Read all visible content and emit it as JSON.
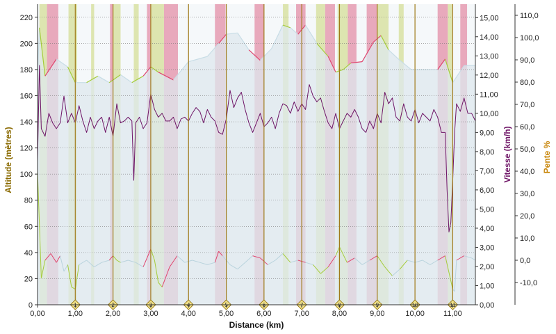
{
  "chart_data": {
    "type": "line",
    "xlabel": "Distance (km)",
    "x_ticks": [
      "0,00",
      "1,00",
      "2,00",
      "3,00",
      "4,00",
      "5,00",
      "6,00",
      "7,00",
      "8,00",
      "9,00",
      "10,00",
      "11,00"
    ],
    "xlim": [
      0,
      11.6
    ],
    "y_left": {
      "label": "Altitude (mètres)",
      "ticks": [
        "0",
        "20",
        "40",
        "60",
        "80",
        "100",
        "120",
        "140",
        "160",
        "180",
        "200",
        "220"
      ],
      "lim": [
        0,
        230
      ]
    },
    "y_right_speed": {
      "label": "Vitesse (km/h)",
      "ticks": [
        "0,00",
        "1,00",
        "2,00",
        "3,00",
        "4,00",
        "5,00",
        "6,00",
        "7,00",
        "8,00",
        "9,00",
        "10,00",
        "11,00",
        "12,00",
        "13,00",
        "14,00",
        "15,00"
      ],
      "lim": [
        0,
        15.7
      ]
    },
    "y_right_slope": {
      "label": "Pente %",
      "ticks": [
        "-10,0",
        "0,0",
        "10,0",
        "20,0",
        "30,0",
        "40,0",
        "50,0",
        "60,0",
        "70,0",
        "80,0",
        "90,0",
        "100,0",
        "110,0"
      ],
      "lim": [
        -20,
        115
      ]
    },
    "km_markers": [
      "1",
      "2",
      "3",
      "4",
      "5",
      "6",
      "7",
      "8",
      "9",
      "10",
      "11"
    ],
    "colors": {
      "altitude_fill": "#dde8ee",
      "altitude_line": "#c8dde6",
      "uphill": "#e8a9bc",
      "downhill": "#dde5b0",
      "uphill_line": "#e0456e",
      "downhill_line": "#a5cc3a",
      "speed": "#6e1466",
      "km_line": "#a07a1a",
      "axis_text_left": "#8a6a00",
      "axis_text_speed": "#6e1466",
      "axis_text_slope": "#c8860a"
    },
    "grid": true,
    "series": [
      {
        "name": "Altitude (mètres)",
        "axis": "left",
        "x": [
          0.0,
          0.05,
          0.2,
          0.5,
          0.8,
          1.0,
          1.3,
          1.6,
          1.9,
          2.2,
          2.5,
          2.8,
          3.0,
          3.2,
          3.6,
          4.0,
          4.5,
          4.8,
          5.0,
          5.3,
          5.6,
          5.9,
          6.2,
          6.5,
          6.7,
          6.9,
          7.1,
          7.4,
          7.7,
          7.9,
          8.1,
          8.3,
          8.6,
          8.9,
          9.1,
          9.3,
          9.6,
          9.9,
          10.3,
          10.6,
          10.8,
          11.0,
          11.3,
          11.6
        ],
        "values": [
          175,
          212,
          175,
          188,
          182,
          170,
          170,
          175,
          170,
          176,
          170,
          175,
          182,
          178,
          172,
          186,
          190,
          200,
          207,
          208,
          195,
          187,
          196,
          214,
          212,
          207,
          214,
          200,
          190,
          178,
          180,
          185,
          186,
          201,
          206,
          195,
          187,
          180,
          180,
          180,
          188,
          170,
          183,
          183
        ]
      },
      {
        "name": "Vitesse (km/h)",
        "axis": "right_speed",
        "x": [
          0.0,
          0.05,
          0.1,
          0.2,
          0.3,
          0.4,
          0.5,
          0.6,
          0.7,
          0.8,
          0.9,
          1.0,
          1.1,
          1.2,
          1.3,
          1.4,
          1.5,
          1.6,
          1.7,
          1.8,
          1.9,
          2.0,
          2.1,
          2.2,
          2.3,
          2.4,
          2.5,
          2.55,
          2.6,
          2.7,
          2.8,
          2.9,
          3.0,
          3.1,
          3.2,
          3.3,
          3.4,
          3.5,
          3.6,
          3.7,
          3.8,
          3.9,
          4.0,
          4.1,
          4.2,
          4.3,
          4.4,
          4.5,
          4.6,
          4.7,
          4.8,
          4.9,
          5.0,
          5.1,
          5.2,
          5.3,
          5.4,
          5.5,
          5.6,
          5.7,
          5.8,
          5.9,
          6.0,
          6.1,
          6.2,
          6.3,
          6.4,
          6.5,
          6.6,
          6.7,
          6.8,
          6.9,
          7.0,
          7.1,
          7.2,
          7.3,
          7.4,
          7.5,
          7.6,
          7.7,
          7.8,
          7.9,
          8.0,
          8.1,
          8.2,
          8.3,
          8.4,
          8.5,
          8.6,
          8.7,
          8.8,
          8.9,
          9.0,
          9.1,
          9.2,
          9.3,
          9.4,
          9.5,
          9.6,
          9.7,
          9.8,
          9.9,
          10.0,
          10.1,
          10.2,
          10.3,
          10.4,
          10.5,
          10.6,
          10.7,
          10.8,
          10.85,
          10.9,
          10.95,
          11.0,
          11.05,
          11.1,
          11.2,
          11.3,
          11.4,
          11.5,
          11.6
        ],
        "values": [
          7.5,
          12.5,
          9.2,
          8.8,
          10.0,
          9.5,
          9.2,
          9.5,
          10.9,
          9.5,
          10.0,
          9.5,
          10.4,
          9.6,
          9.0,
          9.8,
          9.2,
          9.6,
          9.8,
          9.0,
          9.8,
          8.8,
          10.5,
          9.5,
          9.6,
          9.8,
          9.6,
          6.5,
          9.5,
          9.8,
          9.2,
          9.5,
          11.0,
          10.2,
          9.8,
          10.0,
          9.6,
          9.6,
          9.8,
          9.2,
          9.7,
          9.8,
          9.6,
          10.0,
          10.3,
          10.1,
          9.5,
          10.2,
          9.8,
          9.6,
          9.0,
          8.9,
          9.7,
          11.2,
          10.3,
          10.8,
          11.1,
          10.2,
          9.5,
          9.0,
          9.5,
          10.0,
          9.3,
          9.5,
          9.8,
          9.2,
          10.0,
          10.5,
          10.4,
          10.0,
          10.6,
          10.1,
          10.5,
          10.2,
          11.5,
          10.9,
          10.6,
          10.8,
          10.1,
          9.5,
          9.2,
          10.0,
          9.2,
          9.6,
          10.0,
          9.8,
          10.2,
          9.8,
          9.2,
          9.0,
          9.6,
          9.2,
          10.0,
          9.5,
          11.1,
          10.5,
          10.8,
          9.8,
          9.6,
          10.5,
          9.8,
          9.6,
          10.2,
          9.5,
          10.0,
          9.8,
          9.6,
          10.2,
          9.8,
          9.0,
          9.0,
          6.0,
          3.8,
          4.3,
          6.5,
          9.0,
          10.5,
          10.1,
          10.8,
          10.0,
          10.0,
          9.6
        ]
      },
      {
        "name": "Pente %",
        "axis": "right_slope",
        "x": [
          0.0,
          0.1,
          0.2,
          0.35,
          0.5,
          0.6,
          0.7,
          0.8,
          0.9,
          1.0,
          1.1,
          1.3,
          1.5,
          1.7,
          1.9,
          2.0,
          2.1,
          2.2,
          2.4,
          2.6,
          2.8,
          3.0,
          3.1,
          3.2,
          3.3,
          3.5,
          3.7,
          3.9,
          4.1,
          4.3,
          4.5,
          4.7,
          4.8,
          4.9,
          5.1,
          5.3,
          5.5,
          5.7,
          5.9,
          6.1,
          6.3,
          6.5,
          6.7,
          6.9,
          7.1,
          7.3,
          7.5,
          7.7,
          7.9,
          8.0,
          8.2,
          8.4,
          8.6,
          8.8,
          9.0,
          9.2,
          9.4,
          9.6,
          9.8,
          10.0,
          10.2,
          10.4,
          10.6,
          10.8,
          11.0,
          11.05,
          11.1,
          11.3,
          11.5,
          11.6
        ],
        "values": [
          40,
          -8,
          0,
          3,
          -1,
          2,
          -5,
          -2,
          -12,
          -13,
          -2,
          0,
          -3,
          -1,
          0,
          2,
          0,
          -1,
          0,
          -1,
          -3,
          5,
          0,
          -10,
          -12,
          -3,
          2,
          -1,
          0,
          -1,
          -2,
          -1,
          4,
          2,
          -2,
          -4,
          -1,
          2,
          1,
          -2,
          0,
          3,
          -1,
          0,
          -1,
          -2,
          -6,
          -3,
          2,
          6,
          -1,
          1,
          -2,
          0,
          2,
          -3,
          -7,
          -4,
          0,
          -1,
          0,
          -2,
          0,
          2,
          -13,
          -14,
          0,
          2,
          1,
          0
        ]
      }
    ],
    "slope_bands": [
      {
        "from": 0.05,
        "to": 0.25,
        "kind": "down"
      },
      {
        "from": 0.25,
        "to": 0.55,
        "kind": "up"
      },
      {
        "from": 0.82,
        "to": 1.05,
        "kind": "down"
      },
      {
        "from": 1.42,
        "to": 1.5,
        "kind": "down"
      },
      {
        "from": 1.92,
        "to": 2.0,
        "kind": "up"
      },
      {
        "from": 2.0,
        "to": 2.2,
        "kind": "down"
      },
      {
        "from": 2.55,
        "to": 2.68,
        "kind": "down"
      },
      {
        "from": 2.9,
        "to": 3.0,
        "kind": "up"
      },
      {
        "from": 3.0,
        "to": 3.35,
        "kind": "down"
      },
      {
        "from": 3.35,
        "to": 3.72,
        "kind": "up"
      },
      {
        "from": 4.7,
        "to": 4.98,
        "kind": "up"
      },
      {
        "from": 5.75,
        "to": 6.0,
        "kind": "up"
      },
      {
        "from": 6.5,
        "to": 6.65,
        "kind": "down"
      },
      {
        "from": 6.85,
        "to": 7.1,
        "kind": "up"
      },
      {
        "from": 7.38,
        "to": 7.62,
        "kind": "down"
      },
      {
        "from": 7.62,
        "to": 7.88,
        "kind": "up"
      },
      {
        "from": 7.95,
        "to": 8.22,
        "kind": "down"
      },
      {
        "from": 8.22,
        "to": 8.45,
        "kind": "up"
      },
      {
        "from": 8.72,
        "to": 9.0,
        "kind": "up"
      },
      {
        "from": 9.0,
        "to": 9.3,
        "kind": "down"
      },
      {
        "from": 9.57,
        "to": 9.7,
        "kind": "down"
      },
      {
        "from": 10.6,
        "to": 10.87,
        "kind": "up"
      },
      {
        "from": 10.87,
        "to": 10.98,
        "kind": "down"
      },
      {
        "from": 11.2,
        "to": 11.38,
        "kind": "up"
      }
    ]
  }
}
